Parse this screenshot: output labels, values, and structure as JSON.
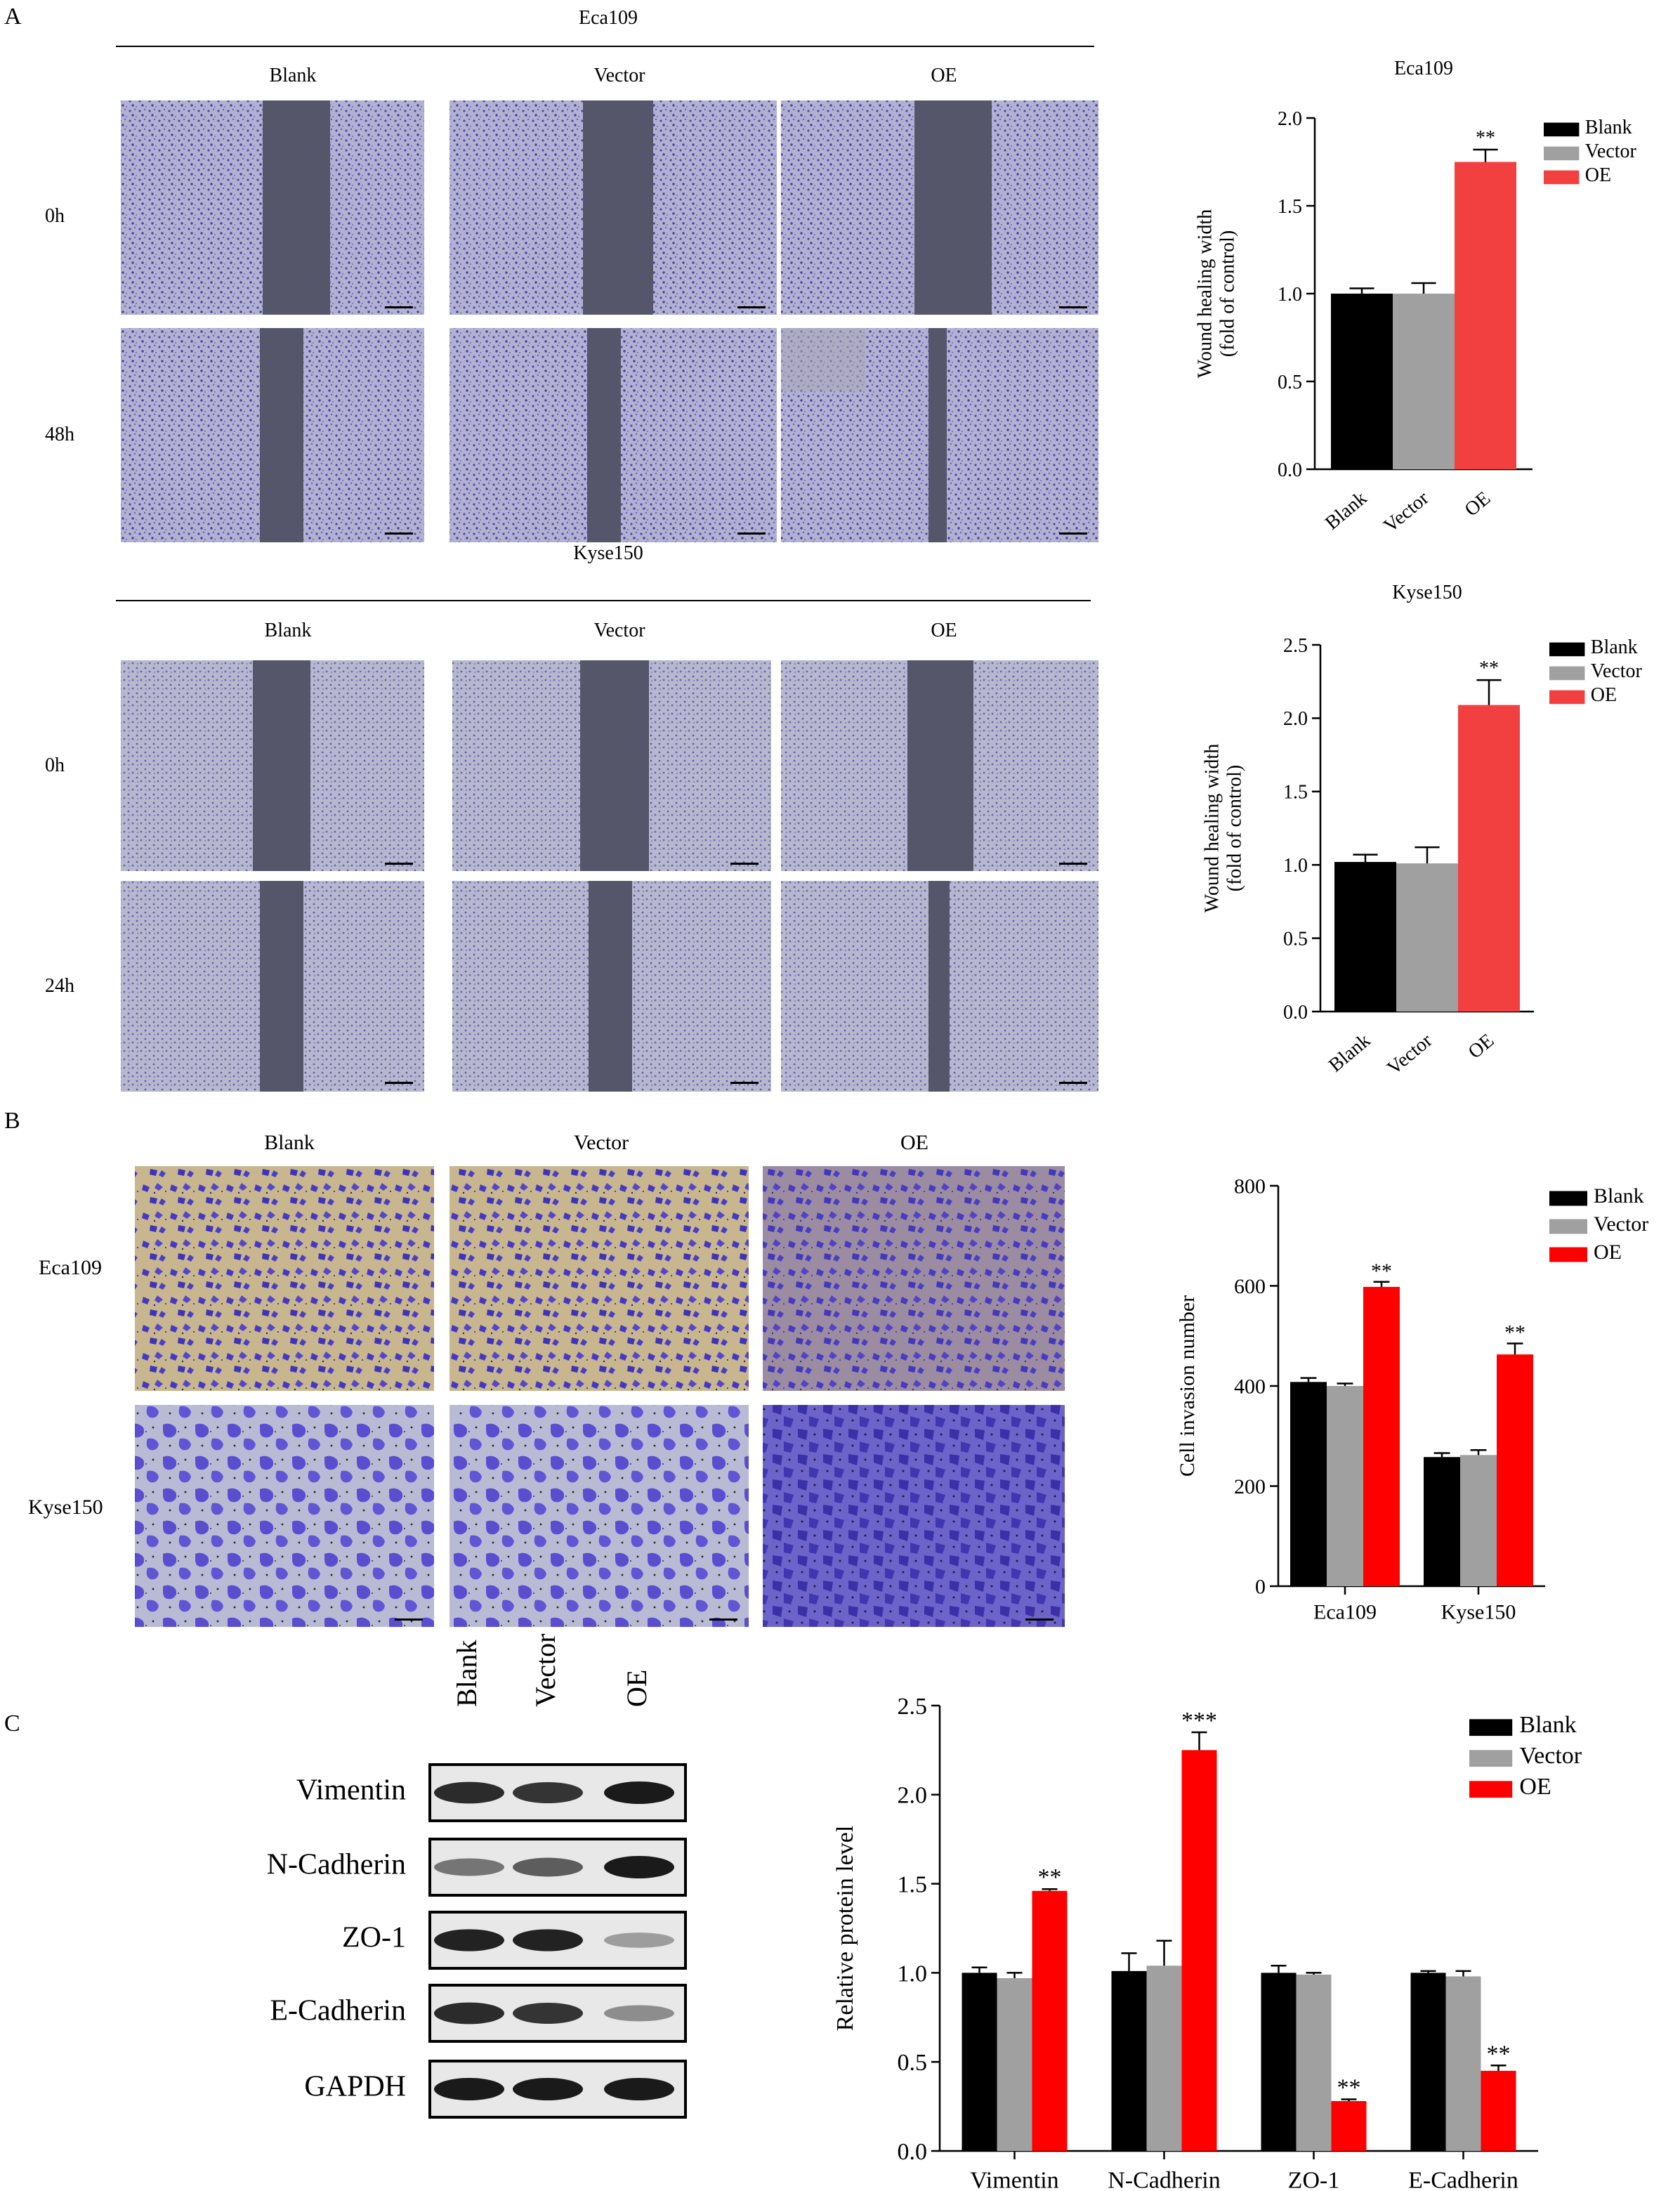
{
  "colors": {
    "blank": "#000000",
    "vector": "#a0a0a0",
    "oe_a": "#f24040",
    "oe": "#ff0000",
    "micro_bg": "#b3b1d2",
    "micro_gap": "#55566a",
    "transwell_bg": "#c9b58e",
    "stain": "#4a3fc2",
    "kyse_bg": "#b8b9cf",
    "blot_bg": "#e8e8e8",
    "band": "#1a1a1a"
  },
  "panels": {
    "A": {
      "label": "A",
      "groups": [
        "Blank",
        "Vector",
        "OE"
      ],
      "eca": {
        "title": "Eca109",
        "times": [
          "0h",
          "48h"
        ]
      },
      "kyse": {
        "title": "Kyse150",
        "times": [
          "0h",
          "24h"
        ]
      }
    },
    "B": {
      "label": "B",
      "groups": [
        "Blank",
        "Vector",
        "OE"
      ],
      "rows": [
        "Eca109",
        "Kyse150"
      ]
    },
    "C": {
      "label": "C",
      "lanes": [
        "Blank",
        "Vector",
        "OE"
      ],
      "proteins": [
        "Vimentin",
        "N-Cadherin",
        "ZO-1",
        "E-Cadherin",
        "GAPDH"
      ],
      "band_intensity": [
        [
          0.9,
          0.85,
          1.0
        ],
        [
          0.45,
          0.6,
          1.0
        ],
        [
          0.95,
          0.95,
          0.2
        ],
        [
          0.9,
          0.85,
          0.3
        ],
        [
          1.0,
          1.0,
          1.0
        ]
      ]
    }
  },
  "chart_data": [
    {
      "type": "bar",
      "title": "Eca109",
      "ylabel": "Wound healing  width\n(fold of control)",
      "categories": [
        "Blank",
        "Vector",
        "OE"
      ],
      "values": [
        1.0,
        1.0,
        1.75
      ],
      "errors": [
        0.03,
        0.06,
        0.07
      ],
      "significance": [
        "",
        "",
        "**"
      ],
      "legend": [
        "Blank",
        "Vector",
        "OE"
      ],
      "ylim": [
        0,
        2.0
      ],
      "yticks": [
        "0.0",
        "0.5",
        "1.0",
        "1.5",
        "2.0"
      ]
    },
    {
      "type": "bar",
      "title": "Kyse150",
      "ylabel": "Wound healing  width\n(fold of control)",
      "categories": [
        "Blank",
        "Vector",
        "OE"
      ],
      "values": [
        1.02,
        1.01,
        2.09
      ],
      "errors": [
        0.05,
        0.11,
        0.17
      ],
      "significance": [
        "",
        "",
        "**"
      ],
      "legend": [
        "Blank",
        "Vector",
        "OE"
      ],
      "ylim": [
        0,
        2.5
      ],
      "yticks": [
        "0.0",
        "0.5",
        "1.0",
        "1.5",
        "2.0",
        "2.5"
      ]
    },
    {
      "type": "bar",
      "title": "",
      "ylabel": "Cell invasion number",
      "categories": [
        "Eca109",
        "Kyse150"
      ],
      "series": [
        {
          "name": "Blank",
          "values": [
            408,
            258
          ],
          "errors": [
            8,
            8
          ]
        },
        {
          "name": "Vector",
          "values": [
            400,
            262
          ],
          "errors": [
            5,
            10
          ]
        },
        {
          "name": "OE",
          "values": [
            598,
            463
          ],
          "errors": [
            10,
            22
          ]
        }
      ],
      "significance": [
        [
          "",
          "",
          "**"
        ],
        [
          "",
          "",
          "**"
        ]
      ],
      "ylim": [
        0,
        800
      ],
      "yticks": [
        "0",
        "200",
        "400",
        "600",
        "800"
      ]
    },
    {
      "type": "bar",
      "title": "",
      "ylabel": "Relative protein level",
      "categories": [
        "Vimentin",
        "N-Cadherin",
        "ZO-1",
        "E-Cadherin"
      ],
      "series": [
        {
          "name": "Blank",
          "values": [
            1.0,
            1.01,
            1.0,
            1.0
          ],
          "errors": [
            0.03,
            0.1,
            0.04,
            0.01
          ]
        },
        {
          "name": "Vector",
          "values": [
            0.97,
            1.04,
            0.99,
            0.98
          ],
          "errors": [
            0.03,
            0.14,
            0.01,
            0.03
          ]
        },
        {
          "name": "OE",
          "values": [
            1.46,
            2.25,
            0.28,
            0.45
          ],
          "errors": [
            0.01,
            0.1,
            0.01,
            0.03
          ]
        }
      ],
      "significance": [
        [
          "",
          "",
          "**"
        ],
        [
          "",
          "",
          "***"
        ],
        [
          "",
          "",
          "**"
        ],
        [
          "",
          "",
          "**"
        ]
      ],
      "ylim": [
        0,
        2.5
      ],
      "yticks": [
        "0.0",
        "0.5",
        "1.0",
        "1.5",
        "2.0",
        "2.5"
      ]
    }
  ]
}
